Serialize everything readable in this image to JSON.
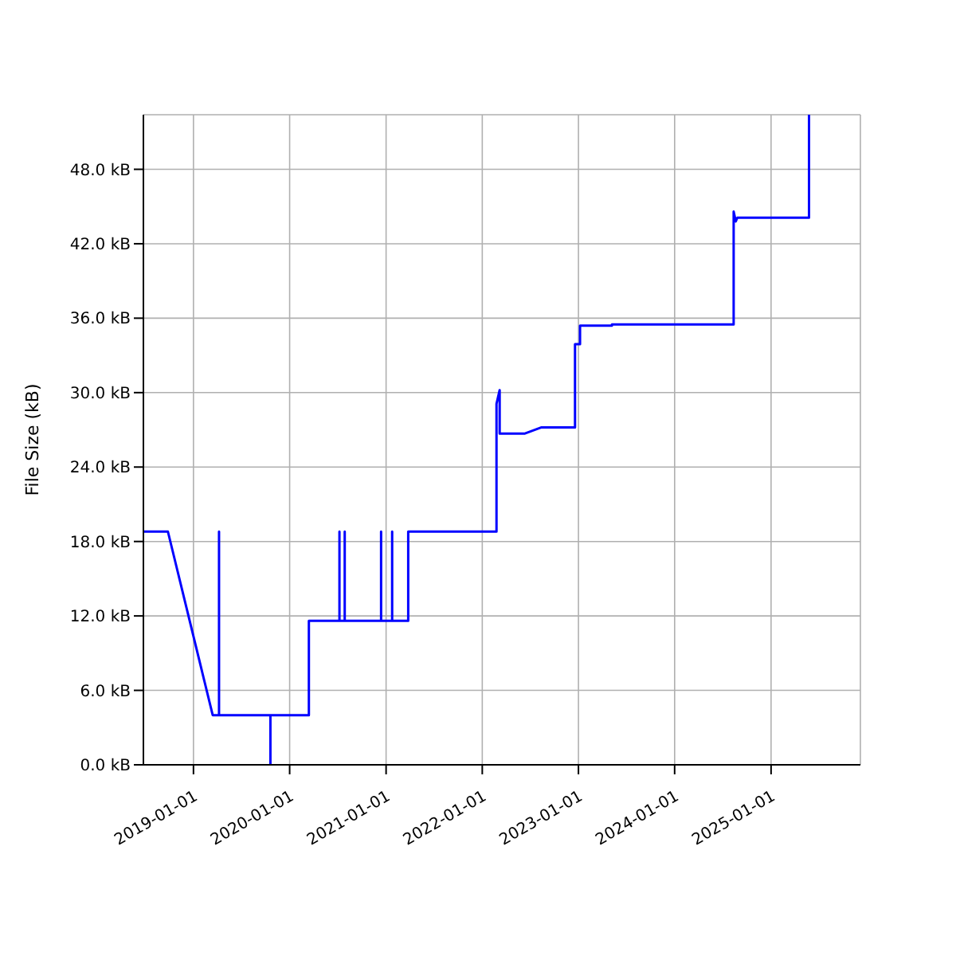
{
  "chart_data": {
    "type": "line",
    "ylabel": "File Size (kB)",
    "x": [
      "2018-06-25",
      "2018-09-26",
      "2019-03-15",
      "2019-04-08",
      "2019-04-08",
      "2019-04-08",
      "2019-10-20",
      "2019-10-20",
      "2019-10-20",
      "2020-03-14",
      "2020-03-14",
      "2020-07-08",
      "2020-07-08",
      "2020-07-08",
      "2020-07-28",
      "2020-07-28",
      "2020-07-28",
      "2020-12-13",
      "2020-12-13",
      "2020-12-13",
      "2021-01-24",
      "2021-01-24",
      "2021-01-24",
      "2021-03-26",
      "2021-03-26",
      "2022-02-24",
      "2022-02-24",
      "2022-03-08",
      "2022-03-08",
      "2022-06-12",
      "2022-08-14",
      "2022-12-19",
      "2022-12-19",
      "2023-01-07",
      "2023-01-07",
      "2023-05-08",
      "2023-05-08",
      "2024-08-12",
      "2024-08-12",
      "2024-08-20",
      "2024-08-26",
      "2025-05-25",
      "2025-05-25"
    ],
    "series": [
      {
        "color": "#0000ff",
        "values": [
          18.8,
          18.8,
          4.0,
          4.0,
          18.8,
          4.0,
          4.0,
          0,
          4.0,
          4.0,
          11.6,
          11.6,
          18.8,
          11.6,
          11.6,
          18.8,
          11.6,
          11.6,
          18.8,
          11.6,
          11.6,
          18.8,
          11.6,
          11.6,
          18.8,
          18.8,
          29.1,
          30.2,
          26.7,
          26.7,
          27.2,
          27.2,
          33.9,
          33.9,
          35.4,
          35.4,
          35.5,
          35.5,
          44.6,
          43.8,
          44.1,
          44.1,
          52.4
        ]
      }
    ],
    "xlim": [
      "2018-06-25",
      "2025-12-06"
    ],
    "xticks": [
      {
        "value": "2019-01-01",
        "label": "2019-01-01"
      },
      {
        "value": "2020-01-01",
        "label": "2020-01-01"
      },
      {
        "value": "2021-01-01",
        "label": "2021-01-01"
      },
      {
        "value": "2022-01-01",
        "label": "2022-01-01"
      },
      {
        "value": "2023-01-01",
        "label": "2023-01-01"
      },
      {
        "value": "2024-01-01",
        "label": "2024-01-01"
      },
      {
        "value": "2025-01-01",
        "label": "2025-01-01"
      }
    ],
    "ylim": [
      0,
      52.4
    ],
    "yticks": [
      {
        "value": 0,
        "label": "0.0 kB"
      },
      {
        "value": 6,
        "label": "6.0 kB"
      },
      {
        "value": 12,
        "label": "12.0 kB"
      },
      {
        "value": 18,
        "label": "18.0 kB"
      },
      {
        "value": 24,
        "label": "24.0 kB"
      },
      {
        "value": 30,
        "label": "30.0 kB"
      },
      {
        "value": 36,
        "label": "36.0 kB"
      },
      {
        "value": 42,
        "label": "42.0 kB"
      },
      {
        "value": 48,
        "label": "48.0 kB"
      }
    ],
    "grid": true
  }
}
